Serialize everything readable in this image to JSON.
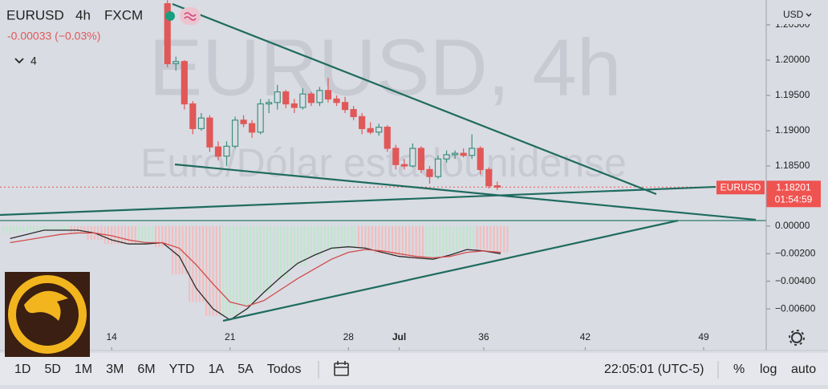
{
  "header": {
    "symbol": "EURUSD",
    "interval": "4h",
    "source": "FXCM",
    "change": "-0.00033 (−0.03%)",
    "indicators": 4,
    "watermark": "EURUSD, 4h",
    "watermark_subtitle": "Euro/Dólar estadounidense",
    "currency": "USD"
  },
  "chart_data": [
    {
      "type": "candlestick",
      "name": "EURUSD",
      "up_color": "#3f8f80",
      "down_color": "#e05858",
      "x": [
        17.3,
        17.8,
        18.3,
        18.8,
        19.3,
        19.8,
        20.3,
        20.8,
        21.3,
        21.8,
        22.3,
        22.8,
        23.3,
        23.8,
        24.3,
        24.8,
        25.3,
        25.8,
        26.3,
        26.8,
        27.3,
        27.8,
        28.3,
        28.8,
        29.3,
        29.8,
        30.3,
        30.8,
        31.3,
        31.8,
        32.3,
        32.8,
        33.3,
        33.8,
        34.3,
        34.8,
        35.3,
        35.8,
        36.3,
        36.8
      ],
      "open": [
        1.208,
        1.1995,
        1.1998,
        1.1938,
        1.1903,
        1.1918,
        1.1877,
        1.1864,
        1.1878,
        1.1915,
        1.191,
        1.1898,
        1.1938,
        1.194,
        1.1955,
        1.1938,
        1.1933,
        1.1952,
        1.194,
        1.1957,
        1.1945,
        1.194,
        1.193,
        1.192,
        1.1903,
        1.1898,
        1.1905,
        1.1875,
        1.1852,
        1.185,
        1.1875,
        1.1845,
        1.1835,
        1.186,
        1.1866,
        1.1868,
        1.1865,
        1.1875,
        1.1845,
        1.1822
      ],
      "high": [
        1.2085,
        1.2005,
        1.2,
        1.1942,
        1.1925,
        1.1922,
        1.1885,
        1.1885,
        1.192,
        1.1922,
        1.1915,
        1.1945,
        1.1945,
        1.1965,
        1.1958,
        1.1945,
        1.196,
        1.1955,
        1.1962,
        1.1975,
        1.195,
        1.1948,
        1.1935,
        1.1925,
        1.1912,
        1.191,
        1.1908,
        1.188,
        1.186,
        1.1882,
        1.1878,
        1.185,
        1.1865,
        1.1872,
        1.1872,
        1.1875,
        1.1895,
        1.1878,
        1.1848,
        1.1828
      ],
      "low": [
        1.199,
        1.1985,
        1.193,
        1.1895,
        1.19,
        1.187,
        1.1858,
        1.185,
        1.1875,
        1.1905,
        1.189,
        1.1895,
        1.1925,
        1.193,
        1.1932,
        1.1925,
        1.193,
        1.1935,
        1.1935,
        1.194,
        1.1935,
        1.1925,
        1.1915,
        1.1895,
        1.1895,
        1.1893,
        1.187,
        1.1845,
        1.1845,
        1.1848,
        1.184,
        1.1825,
        1.1832,
        1.1855,
        1.186,
        1.1862,
        1.186,
        1.1838,
        1.1818,
        1.1816
      ],
      "close": [
        1.1995,
        1.1998,
        1.1938,
        1.1903,
        1.1918,
        1.1877,
        1.1864,
        1.1878,
        1.1915,
        1.191,
        1.1898,
        1.1938,
        1.194,
        1.1955,
        1.1938,
        1.1933,
        1.1952,
        1.194,
        1.1957,
        1.1945,
        1.194,
        1.193,
        1.192,
        1.1903,
        1.1898,
        1.1905,
        1.1875,
        1.1852,
        1.185,
        1.1875,
        1.1845,
        1.1835,
        1.186,
        1.1866,
        1.1868,
        1.1865,
        1.1875,
        1.1845,
        1.1822,
        1.182
      ],
      "last_price": 1.18201,
      "countdown": "01:54:59",
      "xlim": [
        7.4,
        52.7
      ],
      "ylim": [
        1.17727,
        1.20852
      ],
      "yticks": [
        {
          "value": 1.205,
          "label": "1.20500"
        },
        {
          "value": 1.2,
          "label": "1.20000"
        },
        {
          "value": 1.195,
          "label": "1.19500"
        },
        {
          "value": 1.19,
          "label": "1.19000"
        },
        {
          "value": 1.185,
          "label": "1.18500"
        }
      ]
    },
    {
      "type": "macd",
      "x": [
        8,
        9,
        10,
        11,
        12,
        13,
        14,
        15,
        16,
        17,
        18,
        19,
        20,
        21,
        22,
        23,
        24,
        25,
        26,
        27,
        28,
        29,
        30,
        31,
        32,
        33,
        34,
        35,
        36,
        37
      ],
      "histogram": {
        "values": [
          -0.0005,
          -0.0004,
          -0.0003,
          -0.0003,
          -0.0005,
          -0.001,
          -0.0013,
          -0.0013,
          -0.0012,
          -0.0015,
          -0.0035,
          -0.0055,
          -0.0065,
          -0.0065,
          -0.0058,
          -0.0048,
          -0.0038,
          -0.0029,
          -0.0022,
          -0.0017,
          -0.0015,
          -0.0016,
          -0.002,
          -0.0022,
          -0.0024,
          -0.0023,
          -0.002,
          -0.0016,
          -0.0017,
          -0.0019
        ],
        "colors": [
          "#bfe6cc",
          "#bfe6cc",
          "#bfe6cc",
          "#bfe6cc",
          "#f2bcbc",
          "#f2bcbc",
          "#f2bcbc",
          "#f2bcbc",
          "#bfe6cc",
          "#f2bcbc",
          "#f2bcbc",
          "#f2bcbc",
          "#f2bcbc",
          "#bfe6cc",
          "#bfe6cc",
          "#bfe6cc",
          "#bfe6cc",
          "#bfe6cc",
          "#bfe6cc",
          "#bfe6cc",
          "#bfe6cc",
          "#f2bcbc",
          "#f2bcbc",
          "#f2bcbc",
          "#f2bcbc",
          "#bfe6cc",
          "#bfe6cc",
          "#bfe6cc",
          "#f2bcbc",
          "#f2bcbc"
        ]
      },
      "series": [
        {
          "color": "#2b2b2b",
          "values": [
            -0.0009,
            -0.0006,
            -0.0003,
            -0.0003,
            -0.0003,
            -0.0005,
            -0.001,
            -0.0013,
            -0.0013,
            -0.0012,
            -0.0022,
            -0.0045,
            -0.006,
            -0.0068,
            -0.006,
            -0.0048,
            -0.0037,
            -0.0027,
            -0.0021,
            -0.0016,
            -0.0015,
            -0.0016,
            -0.0019,
            -0.0022,
            -0.0023,
            -0.0024,
            -0.0021,
            -0.0017,
            -0.0018,
            -0.002
          ]
        },
        {
          "color": "#d24b4b",
          "values": [
            -0.0012,
            -0.001,
            -0.0008,
            -0.0006,
            -0.0005,
            -0.0005,
            -0.0007,
            -0.001,
            -0.0012,
            -0.0012,
            -0.0016,
            -0.0028,
            -0.0042,
            -0.0055,
            -0.0058,
            -0.0054,
            -0.0046,
            -0.0038,
            -0.0031,
            -0.0024,
            -0.0019,
            -0.0017,
            -0.0018,
            -0.002,
            -0.0022,
            -0.0023,
            -0.0022,
            -0.0019,
            -0.0018,
            -0.0019
          ]
        }
      ],
      "xlim": [
        7.4,
        52.7
      ],
      "ylim": [
        -0.0089,
        0.0004
      ],
      "yticks": [
        {
          "value": 0,
          "label": "0.00000"
        },
        {
          "value": -0.002,
          "label": "−0.00200"
        },
        {
          "value": -0.004,
          "label": "−0.00400"
        },
        {
          "value": -0.006,
          "label": "−0.00600"
        }
      ],
      "xticks": [
        14,
        21,
        28,
        {
          "value": 31,
          "label": "Jul"
        },
        36,
        42,
        49
      ]
    }
  ],
  "toolbar": {
    "ranges": [
      "1D",
      "5D",
      "1M",
      "3M",
      "6M",
      "YTD",
      "1A",
      "5A",
      "Todos"
    ],
    "time": "22:05:01 (UTC-5)",
    "percent": "%",
    "log": "log",
    "auto": "auto"
  }
}
